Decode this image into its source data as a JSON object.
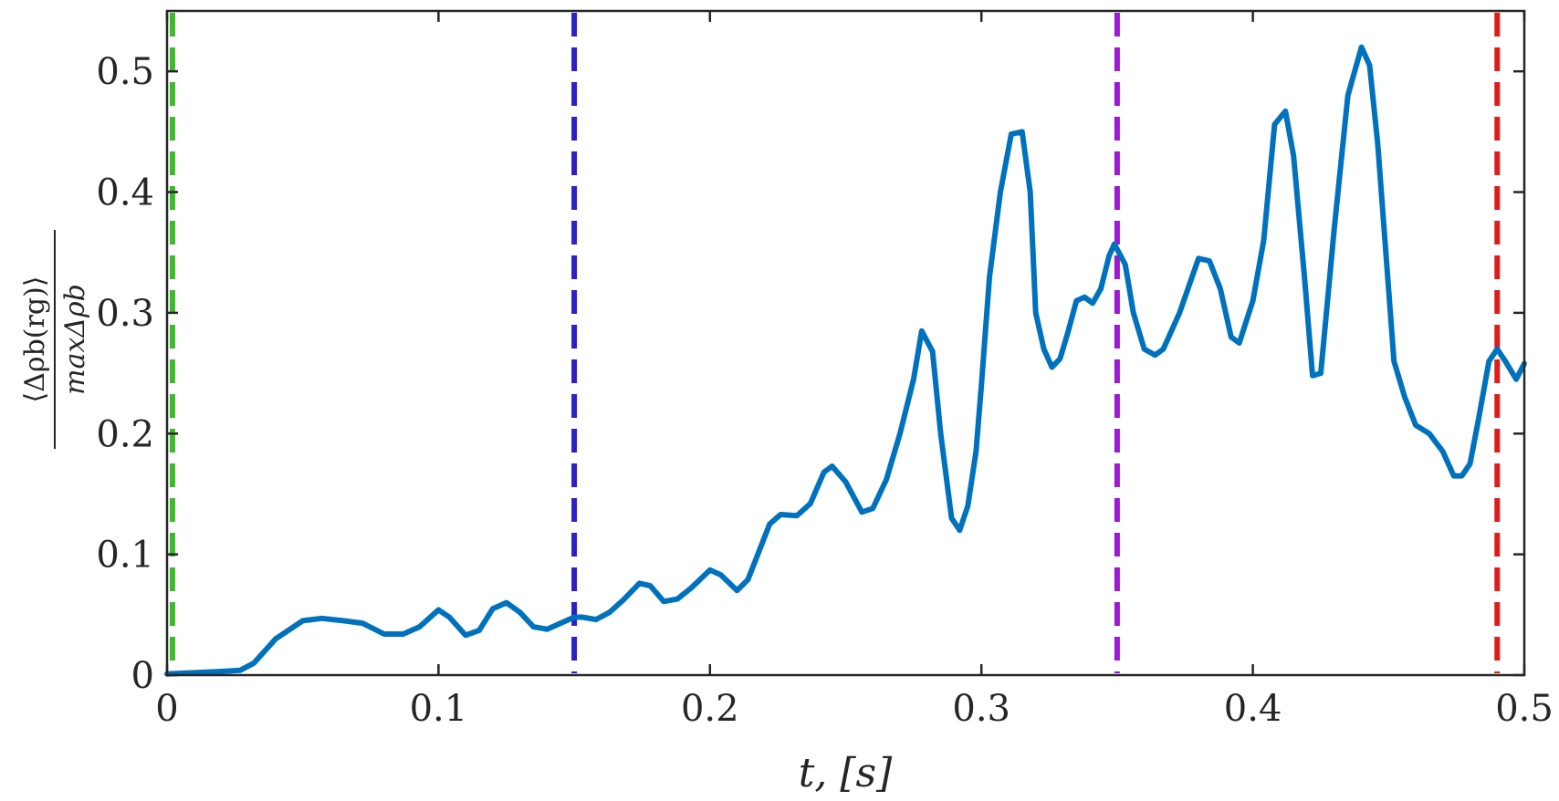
{
  "chart_data": {
    "type": "line",
    "title": "",
    "xlabel": "t, [s]",
    "ylabel": {
      "numerator": "⟨Δρb(rg)⟩",
      "denominator": "maxΔρb"
    },
    "xlim": [
      0,
      0.5
    ],
    "ylim": [
      0,
      0.55
    ],
    "x_ticks": [
      "0",
      "0.1",
      "0.2",
      "0.3",
      "0.4",
      "0.5"
    ],
    "y_ticks": [
      "0",
      "0.1",
      "0.2",
      "0.3",
      "0.4",
      "0.5"
    ],
    "grid": false,
    "series": [
      {
        "color": "#0072bd",
        "x": [
          0,
          0.01,
          0.02,
          0.027,
          0.032,
          0.04,
          0.05,
          0.057,
          0.065,
          0.072,
          0.08,
          0.087,
          0.093,
          0.1,
          0.104,
          0.11,
          0.115,
          0.12,
          0.125,
          0.13,
          0.135,
          0.14,
          0.145,
          0.15,
          0.153,
          0.158,
          0.163,
          0.168,
          0.174,
          0.178,
          0.183,
          0.188,
          0.193,
          0.2,
          0.204,
          0.21,
          0.214,
          0.218,
          0.222,
          0.226,
          0.232,
          0.237,
          0.242,
          0.245,
          0.25,
          0.256,
          0.26,
          0.265,
          0.27,
          0.275,
          0.278,
          0.282,
          0.285,
          0.289,
          0.292,
          0.295,
          0.298,
          0.3,
          0.303,
          0.307,
          0.311,
          0.315,
          0.318,
          0.32,
          0.323,
          0.326,
          0.329,
          0.332,
          0.335,
          0.338,
          0.341,
          0.344,
          0.347,
          0.349,
          0.353,
          0.356,
          0.36,
          0.364,
          0.367,
          0.373,
          0.38,
          0.384,
          0.388,
          0.392,
          0.395,
          0.4,
          0.404,
          0.408,
          0.412,
          0.415,
          0.419,
          0.422,
          0.425,
          0.43,
          0.435,
          0.44,
          0.443,
          0.446,
          0.449,
          0.452,
          0.456,
          0.46,
          0.465,
          0.47,
          0.474,
          0.477,
          0.48,
          0.483,
          0.487,
          0.49,
          0.493,
          0.497,
          0.5
        ],
        "y": [
          0.001,
          0.002,
          0.003,
          0.004,
          0.01,
          0.03,
          0.045,
          0.047,
          0.045,
          0.043,
          0.034,
          0.034,
          0.04,
          0.054,
          0.048,
          0.033,
          0.037,
          0.055,
          0.06,
          0.052,
          0.04,
          0.038,
          0.043,
          0.048,
          0.048,
          0.046,
          0.052,
          0.062,
          0.076,
          0.074,
          0.061,
          0.063,
          0.072,
          0.087,
          0.083,
          0.07,
          0.079,
          0.102,
          0.125,
          0.133,
          0.132,
          0.142,
          0.168,
          0.173,
          0.16,
          0.135,
          0.138,
          0.162,
          0.2,
          0.245,
          0.285,
          0.268,
          0.2,
          0.13,
          0.12,
          0.14,
          0.185,
          0.24,
          0.33,
          0.4,
          0.448,
          0.45,
          0.4,
          0.3,
          0.27,
          0.255,
          0.262,
          0.285,
          0.31,
          0.313,
          0.308,
          0.32,
          0.347,
          0.357,
          0.34,
          0.3,
          0.27,
          0.265,
          0.27,
          0.3,
          0.345,
          0.343,
          0.32,
          0.28,
          0.275,
          0.31,
          0.36,
          0.456,
          0.467,
          0.43,
          0.33,
          0.248,
          0.25,
          0.37,
          0.48,
          0.52,
          0.505,
          0.44,
          0.35,
          0.26,
          0.23,
          0.207,
          0.2,
          0.185,
          0.165,
          0.165,
          0.175,
          0.21,
          0.26,
          0.27,
          0.26,
          0.245,
          0.258
        ]
      }
    ],
    "reference_lines": [
      {
        "x": 0.002,
        "color": "#3cba2c",
        "style": "dashed"
      },
      {
        "x": 0.15,
        "color": "#2b1fc9",
        "style": "dashed"
      },
      {
        "x": 0.35,
        "color": "#9b1ccf",
        "style": "dashed"
      },
      {
        "x": 0.49,
        "color": "#dd1c1c",
        "style": "dashed"
      }
    ]
  }
}
